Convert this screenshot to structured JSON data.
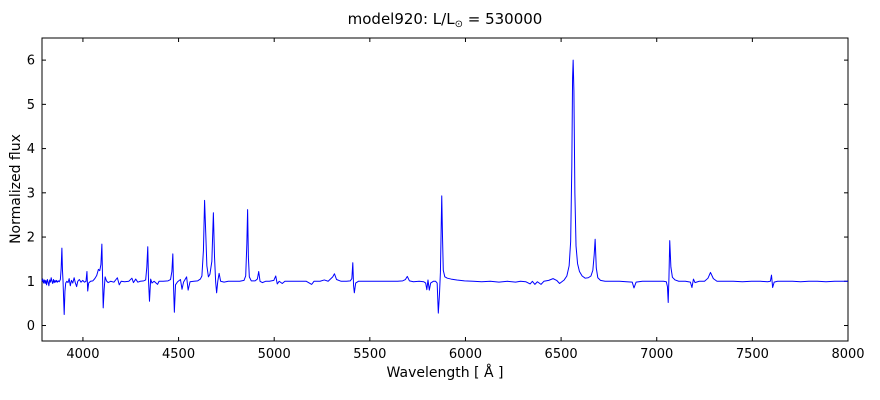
{
  "figure": {
    "title": {
      "prefix": "model920: L/L",
      "sub": "⊙",
      "suffix": " = 530000"
    },
    "xlabel": "Wavelength [ Å ]",
    "ylabel": "Normalized flux"
  },
  "chart_data": {
    "type": "line",
    "title": "model920: L/L⊙ = 530000",
    "xlabel": "Wavelength [ Å ]",
    "ylabel": "Normalized flux",
    "xlim": [
      3786,
      8000
    ],
    "ylim": [
      -0.35,
      6.5
    ],
    "xticks": [
      "4000",
      "4500",
      "5000",
      "5500",
      "6000",
      "6500",
      "7000",
      "7500",
      "8000"
    ],
    "yticks": [
      "0",
      "1",
      "2",
      "3",
      "4",
      "5",
      "6"
    ],
    "grid": false,
    "legend": null,
    "line_color": "#0000ff",
    "frame_color": "#000000",
    "continuum_level": 1.0,
    "main_emission_peaks": [
      {
        "wavelength": 3890,
        "flux": 1.75
      },
      {
        "wavelength": 4100,
        "flux": 1.85
      },
      {
        "wavelength": 4340,
        "flux": 1.8
      },
      {
        "wavelength": 4640,
        "flux": 2.85
      },
      {
        "wavelength": 4686,
        "flux": 2.55
      },
      {
        "wavelength": 4861,
        "flux": 2.6
      },
      {
        "wavelength": 5876,
        "flux": 2.95
      },
      {
        "wavelength": 6563,
        "flux": 6.0
      },
      {
        "wavelength": 6678,
        "flux": 1.95
      },
      {
        "wavelength": 7065,
        "flux": 1.9
      }
    ],
    "main_absorption_dips": [
      {
        "wavelength": 3902,
        "flux": 0.25
      },
      {
        "wavelength": 4106,
        "flux": 0.4
      },
      {
        "wavelength": 4348,
        "flux": 0.55
      },
      {
        "wavelength": 4478,
        "flux": 0.3
      },
      {
        "wavelength": 5858,
        "flux": 0.28
      },
      {
        "wavelength": 7060,
        "flux": 0.52
      }
    ],
    "series": [
      {
        "name": "normalized flux spectrum",
        "points": [
          [
            3786,
            1.0
          ],
          [
            3790,
            1.05
          ],
          [
            3794,
            0.96
          ],
          [
            3798,
            1.03
          ],
          [
            3802,
            0.95
          ],
          [
            3806,
            1.02
          ],
          [
            3810,
            0.92
          ],
          [
            3814,
            1.04
          ],
          [
            3818,
            0.98
          ],
          [
            3822,
            0.9
          ],
          [
            3826,
            1.03
          ],
          [
            3830,
            0.98
          ],
          [
            3834,
            1.08
          ],
          [
            3838,
            1.0
          ],
          [
            3842,
            0.95
          ],
          [
            3846,
            1.04
          ],
          [
            3850,
            0.97
          ],
          [
            3854,
            1.02
          ],
          [
            3858,
            0.98
          ],
          [
            3862,
            1.02
          ],
          [
            3866,
            0.98
          ],
          [
            3871,
            1.01
          ],
          [
            3876,
            0.99
          ],
          [
            3882,
            1.04
          ],
          [
            3886,
            1.28
          ],
          [
            3890,
            1.75
          ],
          [
            3893,
            1.25
          ],
          [
            3896,
            1.0
          ],
          [
            3899,
            0.62
          ],
          [
            3902,
            0.25
          ],
          [
            3906,
            0.78
          ],
          [
            3910,
            0.96
          ],
          [
            3916,
            1.0
          ],
          [
            3922,
            0.97
          ],
          [
            3928,
            1.06
          ],
          [
            3934,
            0.9
          ],
          [
            3940,
            1.02
          ],
          [
            3947,
            0.96
          ],
          [
            3954,
            1.08
          ],
          [
            3960,
            0.97
          ],
          [
            3967,
            0.88
          ],
          [
            3973,
            1.0
          ],
          [
            3981,
            1.04
          ],
          [
            3990,
            0.98
          ],
          [
            3999,
            1.02
          ],
          [
            4008,
            0.98
          ],
          [
            4016,
            1.0
          ],
          [
            4021,
            1.22
          ],
          [
            4025,
            0.78
          ],
          [
            4030,
            0.96
          ],
          [
            4040,
            1.0
          ],
          [
            4052,
            1.01
          ],
          [
            4062,
            1.06
          ],
          [
            4072,
            1.13
          ],
          [
            4081,
            1.27
          ],
          [
            4088,
            1.24
          ],
          [
            4094,
            1.38
          ],
          [
            4099,
            1.84
          ],
          [
            4102,
            1.2
          ],
          [
            4106,
            0.4
          ],
          [
            4111,
            0.82
          ],
          [
            4116,
            1.1
          ],
          [
            4123,
            1.01
          ],
          [
            4132,
            0.97
          ],
          [
            4145,
            1.0
          ],
          [
            4162,
            0.98
          ],
          [
            4180,
            1.08
          ],
          [
            4190,
            0.92
          ],
          [
            4200,
            1.0
          ],
          [
            4218,
            0.99
          ],
          [
            4240,
            1.0
          ],
          [
            4256,
            1.07
          ],
          [
            4264,
            0.97
          ],
          [
            4276,
            1.05
          ],
          [
            4287,
            0.98
          ],
          [
            4300,
            1.0
          ],
          [
            4318,
            1.01
          ],
          [
            4328,
            1.03
          ],
          [
            4334,
            1.32
          ],
          [
            4339,
            1.78
          ],
          [
            4343,
            1.0
          ],
          [
            4348,
            0.55
          ],
          [
            4354,
            1.05
          ],
          [
            4361,
            0.96
          ],
          [
            4372,
            1.0
          ],
          [
            4390,
            0.93
          ],
          [
            4398,
            1.0
          ],
          [
            4420,
            1.0
          ],
          [
            4445,
            1.01
          ],
          [
            4458,
            1.04
          ],
          [
            4465,
            1.22
          ],
          [
            4470,
            1.62
          ],
          [
            4474,
            0.85
          ],
          [
            4478,
            0.3
          ],
          [
            4484,
            0.92
          ],
          [
            4495,
            0.99
          ],
          [
            4510,
            1.04
          ],
          [
            4518,
            0.82
          ],
          [
            4526,
            0.98
          ],
          [
            4542,
            1.1
          ],
          [
            4550,
            0.8
          ],
          [
            4560,
            0.99
          ],
          [
            4580,
            1.0
          ],
          [
            4600,
            1.01
          ],
          [
            4614,
            1.05
          ],
          [
            4622,
            1.12
          ],
          [
            4630,
            1.7
          ],
          [
            4636,
            2.83
          ],
          [
            4642,
            2.1
          ],
          [
            4648,
            1.35
          ],
          [
            4656,
            1.1
          ],
          [
            4664,
            1.16
          ],
          [
            4674,
            1.45
          ],
          [
            4682,
            2.55
          ],
          [
            4688,
            1.55
          ],
          [
            4694,
            0.98
          ],
          [
            4699,
            0.74
          ],
          [
            4705,
            1.0
          ],
          [
            4712,
            1.18
          ],
          [
            4720,
            1.0
          ],
          [
            4738,
            0.98
          ],
          [
            4760,
            1.0
          ],
          [
            4790,
            1.0
          ],
          [
            4820,
            1.0
          ],
          [
            4842,
            1.02
          ],
          [
            4851,
            1.12
          ],
          [
            4857,
            1.85
          ],
          [
            4861,
            2.62
          ],
          [
            4865,
            1.55
          ],
          [
            4870,
            1.1
          ],
          [
            4880,
            1.01
          ],
          [
            4900,
            1.01
          ],
          [
            4912,
            1.05
          ],
          [
            4919,
            1.22
          ],
          [
            4926,
            1.0
          ],
          [
            4938,
            0.97
          ],
          [
            4955,
            1.0
          ],
          [
            4975,
            1.0
          ],
          [
            4998,
            1.02
          ],
          [
            5008,
            1.12
          ],
          [
            5016,
            0.94
          ],
          [
            5026,
            1.0
          ],
          [
            5042,
            0.95
          ],
          [
            5056,
            1.0
          ],
          [
            5090,
            1.0
          ],
          [
            5130,
            1.0
          ],
          [
            5168,
            1.0
          ],
          [
            5196,
            0.93
          ],
          [
            5208,
            1.0
          ],
          [
            5240,
            1.0
          ],
          [
            5262,
            1.03
          ],
          [
            5282,
            1.0
          ],
          [
            5306,
            1.1
          ],
          [
            5315,
            1.17
          ],
          [
            5326,
            1.04
          ],
          [
            5350,
            1.0
          ],
          [
            5378,
            1.0
          ],
          [
            5398,
            1.01
          ],
          [
            5406,
            1.06
          ],
          [
            5411,
            1.42
          ],
          [
            5415,
            0.9
          ],
          [
            5419,
            0.74
          ],
          [
            5426,
            0.96
          ],
          [
            5440,
            1.0
          ],
          [
            5470,
            1.0
          ],
          [
            5510,
            1.0
          ],
          [
            5555,
            1.0
          ],
          [
            5600,
            1.0
          ],
          [
            5645,
            1.0
          ],
          [
            5672,
            1.01
          ],
          [
            5686,
            1.04
          ],
          [
            5696,
            1.11
          ],
          [
            5707,
            1.01
          ],
          [
            5728,
            0.99
          ],
          [
            5758,
            1.0
          ],
          [
            5782,
            0.99
          ],
          [
            5792,
            0.96
          ],
          [
            5798,
            0.81
          ],
          [
            5804,
            1.03
          ],
          [
            5811,
            0.8
          ],
          [
            5818,
            0.96
          ],
          [
            5832,
            1.0
          ],
          [
            5844,
            1.0
          ],
          [
            5852,
            0.96
          ],
          [
            5858,
            0.28
          ],
          [
            5864,
            0.7
          ],
          [
            5869,
            1.2
          ],
          [
            5873,
            2.2
          ],
          [
            5876,
            2.93
          ],
          [
            5880,
            2.0
          ],
          [
            5884,
            1.25
          ],
          [
            5892,
            1.1
          ],
          [
            5905,
            1.07
          ],
          [
            5925,
            1.05
          ],
          [
            5955,
            1.03
          ],
          [
            5995,
            1.01
          ],
          [
            6040,
            1.0
          ],
          [
            6085,
            0.99
          ],
          [
            6130,
            1.0
          ],
          [
            6175,
            0.98
          ],
          [
            6220,
            1.0
          ],
          [
            6262,
            0.98
          ],
          [
            6288,
            1.0
          ],
          [
            6315,
            0.99
          ],
          [
            6338,
            0.94
          ],
          [
            6350,
            1.0
          ],
          [
            6363,
            0.93
          ],
          [
            6376,
            0.99
          ],
          [
            6395,
            0.93
          ],
          [
            6410,
            1.0
          ],
          [
            6435,
            1.02
          ],
          [
            6458,
            1.06
          ],
          [
            6477,
            1.02
          ],
          [
            6492,
            0.95
          ],
          [
            6504,
            0.99
          ],
          [
            6516,
            1.03
          ],
          [
            6530,
            1.12
          ],
          [
            6542,
            1.35
          ],
          [
            6550,
            1.9
          ],
          [
            6556,
            3.6
          ],
          [
            6560,
            5.6
          ],
          [
            6563,
            6.0
          ],
          [
            6567,
            5.3
          ],
          [
            6572,
            3.0
          ],
          [
            6578,
            1.8
          ],
          [
            6586,
            1.4
          ],
          [
            6596,
            1.22
          ],
          [
            6610,
            1.12
          ],
          [
            6626,
            1.07
          ],
          [
            6642,
            1.08
          ],
          [
            6656,
            1.12
          ],
          [
            6666,
            1.25
          ],
          [
            6673,
            1.6
          ],
          [
            6678,
            1.95
          ],
          [
            6684,
            1.3
          ],
          [
            6692,
            1.08
          ],
          [
            6706,
            1.02
          ],
          [
            6730,
            1.0
          ],
          [
            6765,
            1.0
          ],
          [
            6805,
            1.0
          ],
          [
            6842,
            0.99
          ],
          [
            6872,
            0.98
          ],
          [
            6881,
            0.85
          ],
          [
            6892,
            0.98
          ],
          [
            6925,
            1.0
          ],
          [
            6965,
            1.0
          ],
          [
            7005,
            1.0
          ],
          [
            7035,
            1.0
          ],
          [
            7050,
            0.99
          ],
          [
            7056,
            0.88
          ],
          [
            7060,
            0.52
          ],
          [
            7064,
            1.1
          ],
          [
            7068,
            1.92
          ],
          [
            7074,
            1.32
          ],
          [
            7082,
            1.09
          ],
          [
            7096,
            1.03
          ],
          [
            7115,
            1.0
          ],
          [
            7150,
            1.0
          ],
          [
            7176,
            0.98
          ],
          [
            7184,
            0.86
          ],
          [
            7192,
            1.05
          ],
          [
            7200,
            0.97
          ],
          [
            7222,
            1.0
          ],
          [
            7250,
            1.0
          ],
          [
            7268,
            1.07
          ],
          [
            7281,
            1.2
          ],
          [
            7296,
            1.06
          ],
          [
            7315,
            1.0
          ],
          [
            7355,
            1.0
          ],
          [
            7400,
            1.0
          ],
          [
            7448,
            0.99
          ],
          [
            7495,
            1.0
          ],
          [
            7542,
            1.0
          ],
          [
            7580,
            0.99
          ],
          [
            7594,
            1.0
          ],
          [
            7600,
            1.14
          ],
          [
            7606,
            0.86
          ],
          [
            7614,
            0.98
          ],
          [
            7632,
            1.0
          ],
          [
            7670,
            1.0
          ],
          [
            7710,
            1.0
          ],
          [
            7752,
            0.99
          ],
          [
            7795,
            1.0
          ],
          [
            7840,
            1.0
          ],
          [
            7885,
            0.99
          ],
          [
            7930,
            1.0
          ],
          [
            7965,
            1.0
          ],
          [
            8000,
            1.0
          ]
        ]
      }
    ]
  }
}
